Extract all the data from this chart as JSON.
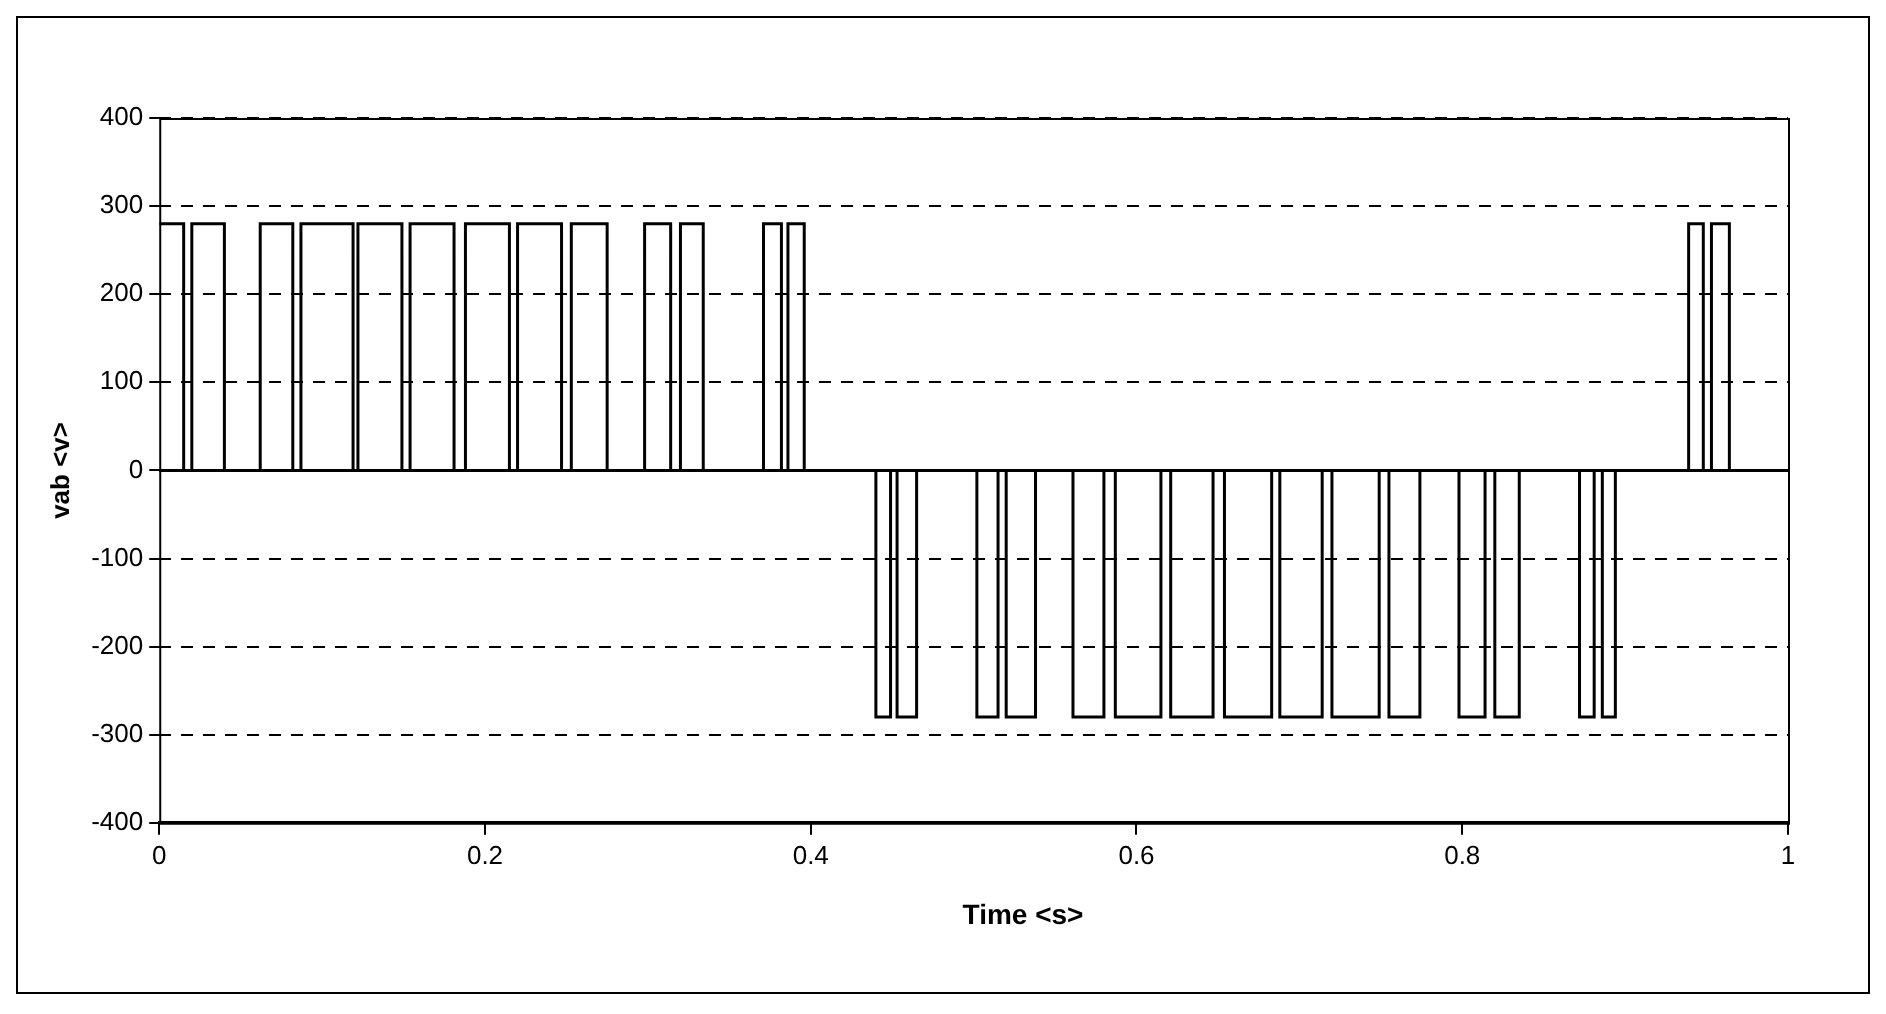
{
  "chart_data": {
    "type": "step",
    "xlabel": "Time <s>",
    "ylabel": "vab <v>",
    "color": "#000000",
    "marker": "none",
    "grid": "y",
    "legend": false,
    "x": [
      0,
      0.015,
      0.02,
      0.04,
      0.062,
      0.082,
      0.087,
      0.119,
      0.122,
      0.149,
      0.154,
      0.181,
      0.188,
      0.215,
      0.22,
      0.247,
      0.253,
      0.275,
      0.298,
      0.314,
      0.32,
      0.334,
      0.371,
      0.382,
      0.386,
      0.396,
      0.44,
      0.449,
      0.453,
      0.465,
      0.502,
      0.515,
      0.52,
      0.538,
      0.561,
      0.58,
      0.587,
      0.615,
      0.621,
      0.647,
      0.654,
      0.683,
      0.688,
      0.714,
      0.72,
      0.749,
      0.755,
      0.774,
      0.798,
      0.814,
      0.82,
      0.835,
      0.872,
      0.881,
      0.886,
      0.894,
      0.939,
      0.948,
      0.953,
      0.964,
      1
    ],
    "values": [
      280,
      0,
      280,
      0,
      280,
      0,
      280,
      0,
      280,
      0,
      280,
      0,
      280,
      0,
      280,
      0,
      280,
      0,
      280,
      0,
      280,
      0,
      280,
      0,
      280,
      0,
      -280,
      0,
      -280,
      0,
      -280,
      0,
      -280,
      0,
      -280,
      0,
      -280,
      0,
      -280,
      0,
      -280,
      0,
      -280,
      0,
      -280,
      0,
      -280,
      0,
      -280,
      0,
      -280,
      0,
      -280,
      0,
      -280,
      0,
      280,
      0,
      280,
      0,
      0
    ],
    "xlim": [
      0,
      1
    ],
    "xticks": [
      0,
      0.2,
      0.4,
      0.6,
      0.8,
      1
    ],
    "ylim": [
      -400,
      400
    ],
    "yticks": [
      -400,
      -300,
      -200,
      -100,
      0,
      100,
      200,
      300,
      400
    ]
  }
}
